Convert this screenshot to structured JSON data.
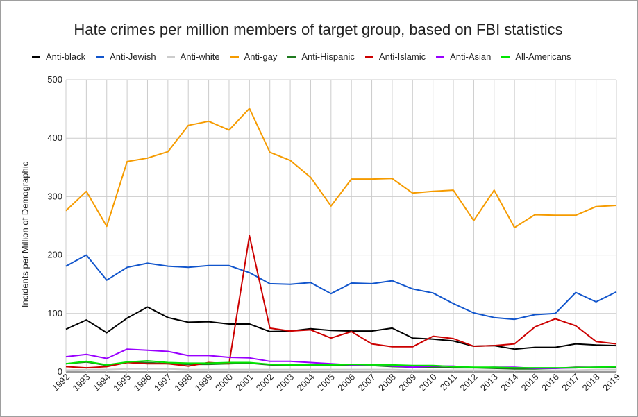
{
  "chart_data": {
    "type": "line",
    "title": "Hate crimes per million members of target group, based on FBI statistics",
    "xlabel": "",
    "ylabel": "Incidents per Million of Demographic",
    "ylim": [
      0,
      500
    ],
    "yticks": [
      0,
      100,
      200,
      300,
      400,
      500
    ],
    "x": [
      "1992",
      "1993",
      "1994",
      "1995",
      "1996",
      "1997",
      "1998",
      "1999",
      "2000",
      "2001",
      "2002",
      "2003",
      "2004",
      "2005",
      "2006",
      "2007",
      "2008",
      "2009",
      "2010",
      "2011",
      "2012",
      "2013",
      "2014",
      "2015",
      "2016",
      "2017",
      "2018",
      "2019"
    ],
    "legend_position": "top",
    "grid": true,
    "series": [
      {
        "name": "Anti-black",
        "color": "#000000",
        "values": [
          73,
          89,
          67,
          92,
          111,
          93,
          85,
          86,
          82,
          82,
          69,
          70,
          74,
          71,
          70,
          70,
          75,
          58,
          56,
          53,
          44,
          45,
          39,
          42,
          42,
          48,
          46,
          45
        ]
      },
      {
        "name": "Anti-Jewish",
        "color": "#1155cc",
        "values": [
          181,
          200,
          157,
          179,
          186,
          181,
          179,
          182,
          182,
          170,
          151,
          150,
          153,
          134,
          152,
          151,
          156,
          142,
          135,
          117,
          101,
          93,
          90,
          98,
          100,
          136,
          120,
          137
        ]
      },
      {
        "name": "Anti-white",
        "color": "#cccccc",
        "values": [
          3,
          4,
          4,
          5,
          5,
          5,
          4,
          4,
          4,
          4,
          4,
          4,
          4,
          4,
          4,
          4,
          4,
          3,
          3,
          3,
          3,
          3,
          2,
          2,
          3,
          3,
          4,
          4
        ]
      },
      {
        "name": "Anti-gay",
        "color": "#f59b00",
        "values": [
          276,
          309,
          249,
          360,
          366,
          377,
          422,
          429,
          414,
          451,
          376,
          362,
          333,
          284,
          330,
          330,
          331,
          306,
          309,
          311,
          259,
          311,
          247,
          269,
          268,
          268,
          283,
          285
        ]
      },
      {
        "name": "Anti-Hispanic",
        "color": "#1f7a1f",
        "values": [
          14,
          17,
          11,
          16,
          16,
          14,
          13,
          13,
          14,
          15,
          12,
          11,
          11,
          11,
          11,
          11,
          9,
          8,
          8,
          7,
          7,
          6,
          5,
          5,
          6,
          8,
          8,
          8
        ]
      },
      {
        "name": "Anti-Islamic",
        "color": "#cc0000",
        "values": [
          9,
          7,
          9,
          16,
          14,
          14,
          10,
          16,
          14,
          233,
          75,
          70,
          72,
          58,
          69,
          48,
          43,
          43,
          61,
          57,
          44,
          45,
          48,
          77,
          91,
          79,
          52,
          48
        ]
      },
      {
        "name": "Anti-Asian",
        "color": "#9900ff",
        "values": [
          26,
          30,
          23,
          39,
          37,
          35,
          28,
          28,
          25,
          24,
          18,
          18,
          16,
          14,
          12,
          12,
          10,
          8,
          10,
          10,
          7,
          8,
          8,
          6,
          6,
          7,
          8,
          9
        ]
      },
      {
        "name": "All-Americans",
        "color": "#00e600",
        "values": [
          14,
          18,
          12,
          17,
          19,
          16,
          15,
          15,
          16,
          16,
          13,
          12,
          12,
          12,
          13,
          12,
          12,
          11,
          11,
          9,
          8,
          8,
          7,
          7,
          7,
          7,
          8,
          9
        ]
      }
    ]
  }
}
